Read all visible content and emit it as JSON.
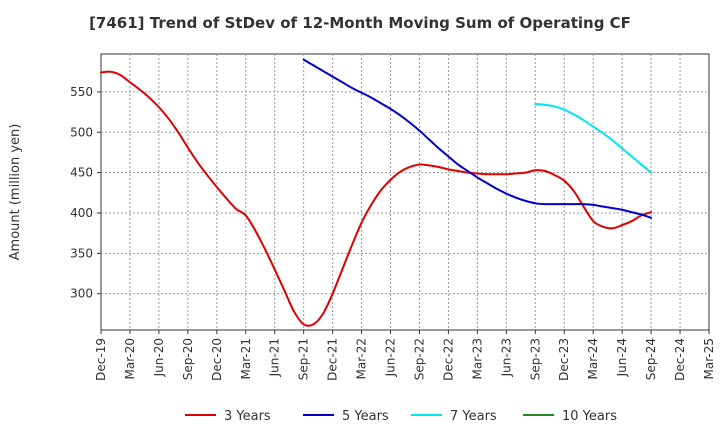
{
  "chart_data": {
    "type": "line",
    "title": "[7461]  Trend of StDev of 12-Month Moving Sum of Operating CF",
    "xlabel": "",
    "ylabel": "Amount (million yen)",
    "x_ticks": [
      "Dec-19",
      "Mar-20",
      "Jun-20",
      "Sep-20",
      "Dec-20",
      "Mar-21",
      "Jun-21",
      "Sep-21",
      "Dec-21",
      "Mar-22",
      "Jun-22",
      "Sep-22",
      "Dec-22",
      "Mar-23",
      "Jun-23",
      "Sep-23",
      "Dec-23",
      "Mar-24",
      "Jun-24",
      "Sep-24",
      "Dec-24",
      "Mar-25"
    ],
    "y_ticks": [
      300,
      350,
      400,
      450,
      500,
      550
    ],
    "ylim": [
      255,
      597
    ],
    "grid": true,
    "legend_position": "bottom",
    "series": [
      {
        "name": "3 Years",
        "color": "#dd0000",
        "x": [
          "2019-12",
          "2020-01",
          "2020-02",
          "2020-03",
          "2020-04",
          "2020-05",
          "2020-06",
          "2020-07",
          "2020-08",
          "2020-09",
          "2020-10",
          "2020-11",
          "2020-12",
          "2021-01",
          "2021-02",
          "2021-03",
          "2021-04",
          "2021-05",
          "2021-06",
          "2021-07",
          "2021-08",
          "2021-09",
          "2021-10",
          "2021-11",
          "2021-12",
          "2022-01",
          "2022-02",
          "2022-03",
          "2022-04",
          "2022-05",
          "2022-06",
          "2022-07",
          "2022-08",
          "2022-09",
          "2022-10",
          "2022-11",
          "2022-12",
          "2023-01",
          "2023-02",
          "2023-03",
          "2023-04",
          "2023-05",
          "2023-06",
          "2023-07",
          "2023-08",
          "2023-09",
          "2023-10",
          "2023-11",
          "2023-12",
          "2024-01",
          "2024-02",
          "2024-03",
          "2024-04",
          "2024-05",
          "2024-06",
          "2024-07",
          "2024-08",
          "2024-09"
        ],
        "values": [
          574,
          575,
          571,
          562,
          553,
          543,
          531,
          517,
          500,
          481,
          463,
          447,
          432,
          418,
          405,
          397,
          378,
          355,
          330,
          304,
          278,
          262,
          262,
          275,
          300,
          330,
          360,
          388,
          410,
          428,
          441,
          451,
          457,
          460,
          459,
          457,
          454,
          452,
          450,
          449,
          448,
          448,
          448,
          449,
          450,
          453,
          452,
          447,
          440,
          427,
          408,
          390,
          383,
          381,
          385,
          390,
          397,
          401
        ]
      },
      {
        "name": "5 Years",
        "color": "#0000cc",
        "x": [
          "2021-09",
          "2021-10",
          "2021-11",
          "2021-12",
          "2022-01",
          "2022-02",
          "2022-03",
          "2022-04",
          "2022-05",
          "2022-06",
          "2022-07",
          "2022-08",
          "2022-09",
          "2022-10",
          "2022-11",
          "2022-12",
          "2023-01",
          "2023-02",
          "2023-03",
          "2023-04",
          "2023-05",
          "2023-06",
          "2023-07",
          "2023-08",
          "2023-09",
          "2023-10",
          "2023-11",
          "2023-12",
          "2024-01",
          "2024-02",
          "2024-03",
          "2024-04",
          "2024-05",
          "2024-06",
          "2024-07",
          "2024-08",
          "2024-09"
        ],
        "values": [
          590,
          583,
          576,
          569,
          562,
          555,
          549,
          543,
          536,
          529,
          521,
          512,
          502,
          491,
          480,
          470,
          460,
          452,
          444,
          437,
          430,
          424,
          419,
          415,
          412,
          411,
          411,
          411,
          411,
          411,
          410,
          408,
          406,
          404,
          401,
          398,
          394
        ]
      },
      {
        "name": "7 Years",
        "color": "#00e5ee",
        "x": [
          "2023-09",
          "2023-10",
          "2023-11",
          "2023-12",
          "2024-01",
          "2024-02",
          "2024-03",
          "2024-04",
          "2024-05",
          "2024-06",
          "2024-07",
          "2024-08",
          "2024-09"
        ],
        "values": [
          535,
          534,
          532,
          528,
          522,
          515,
          507,
          499,
          490,
          480,
          470,
          460,
          450
        ]
      },
      {
        "name": "10 Years",
        "color": "#228b22",
        "x": [],
        "values": []
      }
    ]
  }
}
